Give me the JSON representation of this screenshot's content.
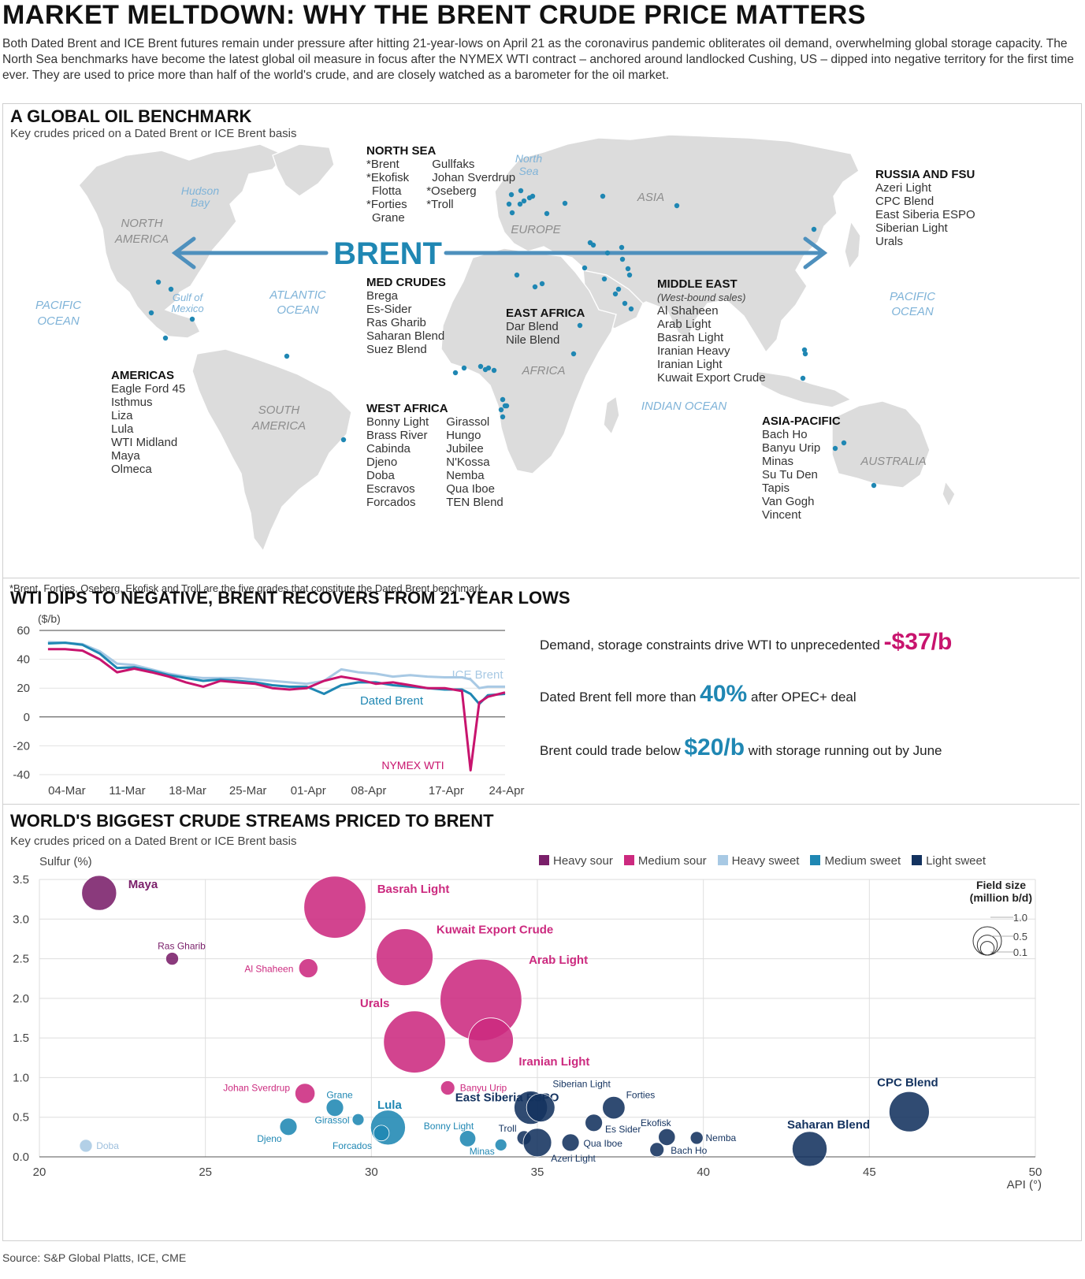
{
  "headline": "MARKET MELTDOWN: WHY THE BRENT CRUDE PRICE MATTERS",
  "intro": "Both Dated Brent and ICE Brent futures remain under pressure after hitting 21-year-lows on April 21 as the coronavirus pandemic obliterates oil demand, overwhelming global storage capacity.  The North Sea benchmarks have become the latest global oil measure in focus after the NYMEX WTI contract – anchored around landlocked Cushing, US – dipped into negative territory for the first time ever. They are used to price more than half of the world's crude, and are closely watched as a barometer for the oil market.",
  "map": {
    "title": "A GLOBAL OIL BENCHMARK",
    "subtitle": "Key crudes priced on a Dated Brent or ICE Brent basis",
    "brent_label": "BRENT",
    "regions": [
      "NORTH AMERICA",
      "SOUTH AMERICA",
      "EUROPE",
      "ASIA",
      "AFRICA",
      "AUSTRALIA"
    ],
    "region_north_america": [
      "NORTH",
      "AMERICA"
    ],
    "region_south_america": [
      "SOUTH",
      "AMERICA"
    ],
    "waters": {
      "hudson": [
        "Hudson",
        "Bay"
      ],
      "gulf": [
        "Gulf of",
        "Mexico"
      ],
      "north_sea": [
        "North",
        "Sea"
      ],
      "pacific_w": [
        "PACIFIC",
        "OCEAN"
      ],
      "atlantic": [
        "ATLANTIC",
        "OCEAN"
      ],
      "pacific_e": [
        "PACIFIC",
        "OCEAN"
      ],
      "indian": "INDIAN OCEAN"
    },
    "groups": {
      "north_sea": {
        "title": "NORTH SEA",
        "col1": [
          "*Brent",
          "*Ekofisk",
          "Flotta",
          "*Forties",
          "Grane"
        ],
        "col2": [
          "Gullfaks",
          "Johan Sverdrup",
          "*Oseberg",
          "*Troll"
        ]
      },
      "russia": {
        "title": "RUSSIA AND FSU",
        "items": [
          "Azeri Light",
          "CPC Blend",
          "East Siberia ESPO",
          "Siberian Light",
          "Urals"
        ]
      },
      "med": {
        "title": "MED CRUDES",
        "items": [
          "Brega",
          "Es-Sider",
          "Ras Gharib",
          "Saharan Blend",
          "Suez Blend"
        ]
      },
      "east_africa": {
        "title": "EAST AFRICA",
        "items": [
          "Dar Blend",
          "Nile Blend"
        ]
      },
      "middle_east": {
        "title": "MIDDLE EAST",
        "note": "(West-bound sales)",
        "items": [
          "Al Shaheen",
          "Arab Light",
          "Basrah Light",
          "Iranian Heavy",
          "Iranian Light",
          "Kuwait Export Crude"
        ]
      },
      "americas": {
        "title": "AMERICAS",
        "items": [
          "Eagle Ford 45",
          "Isthmus",
          "Liza",
          "Lula",
          "WTI Midland",
          "Maya",
          "Olmeca"
        ]
      },
      "west_africa": {
        "title": "WEST AFRICA",
        "col1": [
          "Bonny Light",
          "Brass River",
          "Cabinda",
          "Djeno",
          "Doba",
          "Escravos",
          "Forcados"
        ],
        "col2": [
          "Girassol",
          "Hungo",
          "Jubilee",
          "N'Kossa",
          "Nemba",
          "Qua Iboe",
          "TEN Blend"
        ]
      },
      "asia_pacific": {
        "title": "ASIA-PACIFIC",
        "items": [
          "Bach Ho",
          "Banyu Urip",
          "Minas",
          "Su Tu Den",
          "Tapis",
          "Van Gogh",
          "Vincent"
        ]
      }
    },
    "footnote": "*Brent, Forties, Oseberg, Ekofisk and Troll are the five grades that constitute the Dated Brent benchmark."
  },
  "line_section": {
    "title": "WTI DIPS TO NEGATIVE, BRENT RECOVERS FROM 21-YEAR LOWS",
    "stats": [
      {
        "pre": "Demand, storage constraints drive WTI to unprecedented ",
        "big": "-$37/b",
        "post": "",
        "color": "#c8146e"
      },
      {
        "pre": "Dated Brent fell more than ",
        "big": "40%",
        "post": " after OPEC+ deal",
        "color": "#1f87b3"
      },
      {
        "pre": "Brent could trade below ",
        "big": "$20/b",
        "post": " with storage running out by June",
        "color": "#1f87b3"
      }
    ]
  },
  "bubble_section": {
    "title": "WORLD'S BIGGEST CRUDE STREAMS PRICED TO BRENT",
    "subtitle": "Key crudes priced on a Dated Brent or ICE Brent basis",
    "legend": [
      {
        "name": "Heavy sour",
        "color": "#7a1f6a"
      },
      {
        "name": "Medium sour",
        "color": "#cc2a7f"
      },
      {
        "name": "Heavy sweet",
        "color": "#a8c9e4"
      },
      {
        "name": "Medium sweet",
        "color": "#1f87b3"
      },
      {
        "name": "Light sweet",
        "color": "#13325f"
      }
    ],
    "size_key_title": [
      "Field size",
      "(million b/d)"
    ],
    "size_key_labels": [
      "1.0",
      "0.5",
      "0.1"
    ]
  },
  "source": "Source: S&P Global Platts, ICE, CME",
  "chart_data": [
    {
      "type": "line",
      "ylabel": "($/b)",
      "ylim": [
        -40,
        60
      ],
      "yticks": [
        60,
        40,
        20,
        0,
        -20,
        -40
      ],
      "xlim": [
        "2020-03-01",
        "2020-04-24"
      ],
      "xticks": [
        "04-Mar",
        "11-Mar",
        "18-Mar",
        "25-Mar",
        "01-Apr",
        "08-Apr",
        "17-Apr",
        "24-Apr"
      ],
      "x": [
        "2020-03-02",
        "2020-03-04",
        "2020-03-06",
        "2020-03-08",
        "2020-03-10",
        "2020-03-12",
        "2020-03-14",
        "2020-03-16",
        "2020-03-18",
        "2020-03-20",
        "2020-03-22",
        "2020-03-24",
        "2020-03-26",
        "2020-03-28",
        "2020-03-30",
        "2020-04-01",
        "2020-04-03",
        "2020-04-05",
        "2020-04-07",
        "2020-04-09",
        "2020-04-11",
        "2020-04-13",
        "2020-04-15",
        "2020-04-17",
        "2020-04-19",
        "2020-04-20",
        "2020-04-21",
        "2020-04-22",
        "2020-04-24"
      ],
      "series": [
        {
          "name": "ICE Brent",
          "color": "#a8c9e4",
          "values": [
            51.9,
            51.5,
            50.5,
            45.5,
            37,
            36,
            33,
            30,
            28,
            27,
            27,
            27,
            26,
            25,
            24,
            23,
            25,
            33,
            31,
            30,
            28,
            29,
            28,
            27.5,
            27.5,
            26,
            20,
            21,
            21
          ]
        },
        {
          "name": "Dated Brent",
          "color": "#1f87b3",
          "values": [
            51,
            51.5,
            50,
            44,
            34,
            34.5,
            32,
            29,
            27,
            25,
            26,
            25,
            24,
            22,
            21,
            21,
            16,
            22,
            24,
            24,
            22,
            21,
            20,
            19,
            19,
            16,
            9,
            15,
            16
          ]
        },
        {
          "name": "NYMEX WTI",
          "color": "#c8146e",
          "values": [
            47,
            47,
            46,
            40,
            31,
            33.5,
            31,
            28,
            24,
            21,
            25,
            24,
            23,
            20,
            19,
            20,
            25,
            28,
            26,
            23,
            24,
            22,
            20,
            20,
            18,
            -37,
            10,
            14,
            17
          ]
        }
      ]
    },
    {
      "type": "scatter",
      "xlabel": "API (°)",
      "ylabel": "Sulfur (%)",
      "xlim": [
        20,
        50
      ],
      "ylim": [
        0,
        3.5
      ],
      "xticks": [
        20,
        25,
        30,
        35,
        40,
        45,
        50
      ],
      "yticks": [
        3.5,
        3.0,
        2.5,
        2.0,
        1.5,
        1.0,
        0.5,
        0.0
      ],
      "size_unit": "million b/d",
      "points": [
        {
          "name": "Maya",
          "api": 21.8,
          "sulfur": 3.33,
          "size": 0.6,
          "cat": "Heavy sour"
        },
        {
          "name": "Ras Gharib",
          "api": 24.0,
          "sulfur": 2.5,
          "size": 0.08,
          "cat": "Heavy sour"
        },
        {
          "name": "Basrah Light",
          "api": 28.9,
          "sulfur": 3.15,
          "size": 1.9,
          "cat": "Medium sour"
        },
        {
          "name": "Kuwait Export Crude",
          "api": 31.0,
          "sulfur": 2.52,
          "size": 1.6,
          "cat": "Medium sour"
        },
        {
          "name": "Al Shaheen",
          "api": 28.1,
          "sulfur": 2.38,
          "size": 0.18,
          "cat": "Medium sour"
        },
        {
          "name": "Arab Light",
          "api": 33.3,
          "sulfur": 1.98,
          "size": 3.3,
          "cat": "Medium sour"
        },
        {
          "name": "Urals",
          "api": 31.3,
          "sulfur": 1.45,
          "size": 1.9,
          "cat": "Medium sour"
        },
        {
          "name": "Iranian Light",
          "api": 33.6,
          "sulfur": 1.47,
          "size": 1.0,
          "cat": "Medium sour"
        },
        {
          "name": "Banyu Urip",
          "api": 32.3,
          "sulfur": 0.87,
          "size": 0.1,
          "cat": "Medium sour"
        },
        {
          "name": "Johan Sverdrup",
          "api": 28.0,
          "sulfur": 0.8,
          "size": 0.2,
          "cat": "Medium sour"
        },
        {
          "name": "Doba",
          "api": 21.4,
          "sulfur": 0.14,
          "size": 0.08,
          "cat": "Heavy sweet"
        },
        {
          "name": "Grane",
          "api": 28.9,
          "sulfur": 0.62,
          "size": 0.15,
          "cat": "Medium sweet"
        },
        {
          "name": "Girassol",
          "api": 29.6,
          "sulfur": 0.47,
          "size": 0.07,
          "cat": "Medium sweet"
        },
        {
          "name": "Djeno",
          "api": 27.5,
          "sulfur": 0.38,
          "size": 0.15,
          "cat": "Medium sweet"
        },
        {
          "name": "Lula",
          "api": 30.5,
          "sulfur": 0.37,
          "size": 0.6,
          "cat": "Medium sweet"
        },
        {
          "name": "Forcados",
          "api": 30.3,
          "sulfur": 0.3,
          "size": 0.12,
          "cat": "Medium sweet"
        },
        {
          "name": "Bonny Light",
          "api": 32.9,
          "sulfur": 0.23,
          "size": 0.13,
          "cat": "Medium sweet"
        },
        {
          "name": "Minas",
          "api": 33.9,
          "sulfur": 0.15,
          "size": 0.07,
          "cat": "Medium sweet"
        },
        {
          "name": "East Siberia ESPO",
          "api": 34.8,
          "sulfur": 0.62,
          "size": 0.55,
          "cat": "Light sweet"
        },
        {
          "name": "Siberian Light",
          "api": 35.1,
          "sulfur": 0.62,
          "size": 0.4,
          "cat": "Light sweet"
        },
        {
          "name": "Troll",
          "api": 34.6,
          "sulfur": 0.24,
          "size": 0.1,
          "cat": "Light sweet"
        },
        {
          "name": "Azeri Light",
          "api": 35.0,
          "sulfur": 0.18,
          "size": 0.4,
          "cat": "Light sweet"
        },
        {
          "name": "Qua Iboe",
          "api": 36.0,
          "sulfur": 0.18,
          "size": 0.15,
          "cat": "Light sweet"
        },
        {
          "name": "Es Sider",
          "api": 36.7,
          "sulfur": 0.43,
          "size": 0.15,
          "cat": "Light sweet"
        },
        {
          "name": "Forties",
          "api": 37.3,
          "sulfur": 0.62,
          "size": 0.25,
          "cat": "Light sweet"
        },
        {
          "name": "Ekofisk",
          "api": 38.9,
          "sulfur": 0.25,
          "size": 0.14,
          "cat": "Light sweet"
        },
        {
          "name": "Bach Ho",
          "api": 38.6,
          "sulfur": 0.09,
          "size": 0.1,
          "cat": "Light sweet"
        },
        {
          "name": "Nemba",
          "api": 39.8,
          "sulfur": 0.24,
          "size": 0.08,
          "cat": "Light sweet"
        },
        {
          "name": "Saharan Blend",
          "api": 43.2,
          "sulfur": 0.1,
          "size": 0.6,
          "cat": "Light sweet"
        },
        {
          "name": "CPC Blend",
          "api": 46.2,
          "sulfur": 0.57,
          "size": 0.8,
          "cat": "Light sweet"
        }
      ]
    }
  ]
}
